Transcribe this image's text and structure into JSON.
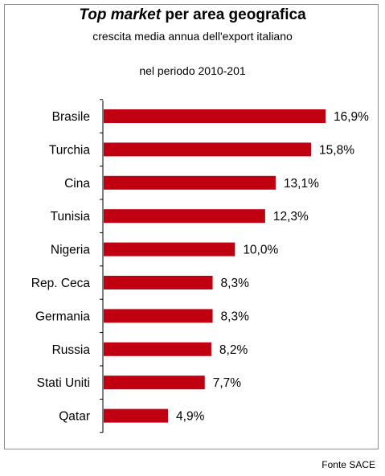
{
  "title": {
    "emphasis": "Top market",
    "rest": " per area geografica"
  },
  "subtitle": "crescita media annua dell'export italiano",
  "period": "nel periodo 2010-201",
  "source": "Fonte SACE",
  "chart_data": {
    "type": "bar",
    "orientation": "horizontal",
    "categories": [
      "Brasile",
      "Turchia",
      "Cina",
      "Tunisia",
      "Nigeria",
      "Rep. Ceca",
      "Germania",
      "Russia",
      "Stati Uniti",
      "Qatar"
    ],
    "values": [
      16.9,
      15.8,
      13.1,
      12.3,
      10.0,
      8.3,
      8.3,
      8.2,
      7.7,
      4.9
    ],
    "labels": [
      "16,9%",
      "15,8%",
      "13,1%",
      "12,3%",
      "10,0%",
      "8,3%",
      "8,3%",
      "8,2%",
      "7,7%",
      "4,9%"
    ],
    "bar_color": "#c00010",
    "xlim": [
      0,
      16.9
    ],
    "grid": false,
    "legend": "none"
  }
}
